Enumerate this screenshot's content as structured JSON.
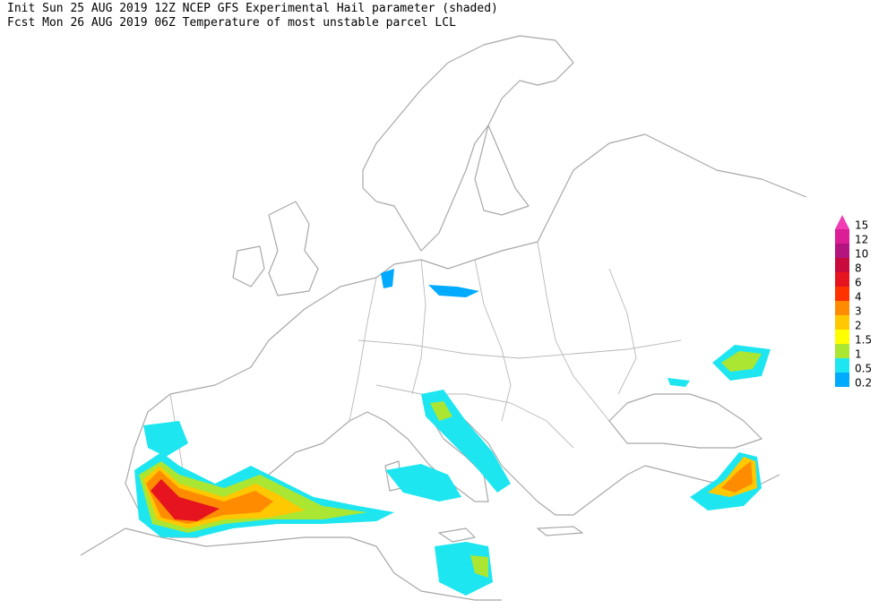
{
  "header": {
    "line1": "Init  Sun 25 AUG 2019 12Z  NCEP GFS Experimental Hail parameter (shaded)",
    "line2": "Fcst Mon 26 AUG 2019 06Z  Temperature of most unstable parcel LCL"
  },
  "legend": [
    {
      "label": "15",
      "color": "#f23cb4"
    },
    {
      "label": "12",
      "color": "#dc1e96"
    },
    {
      "label": "10",
      "color": "#b4147e"
    },
    {
      "label": "8",
      "color": "#c80a3c"
    },
    {
      "label": "6",
      "color": "#e6141e"
    },
    {
      "label": "4",
      "color": "#ff3200"
    },
    {
      "label": "3",
      "color": "#ff8c00"
    },
    {
      "label": "2",
      "color": "#ffc800"
    },
    {
      "label": "1.5",
      "color": "#ffff00"
    },
    {
      "label": "1",
      "color": "#aae632"
    },
    {
      "label": "0.5",
      "color": "#1ee6f0"
    },
    {
      "label": "0.2",
      "color": "#00aaff"
    }
  ]
}
